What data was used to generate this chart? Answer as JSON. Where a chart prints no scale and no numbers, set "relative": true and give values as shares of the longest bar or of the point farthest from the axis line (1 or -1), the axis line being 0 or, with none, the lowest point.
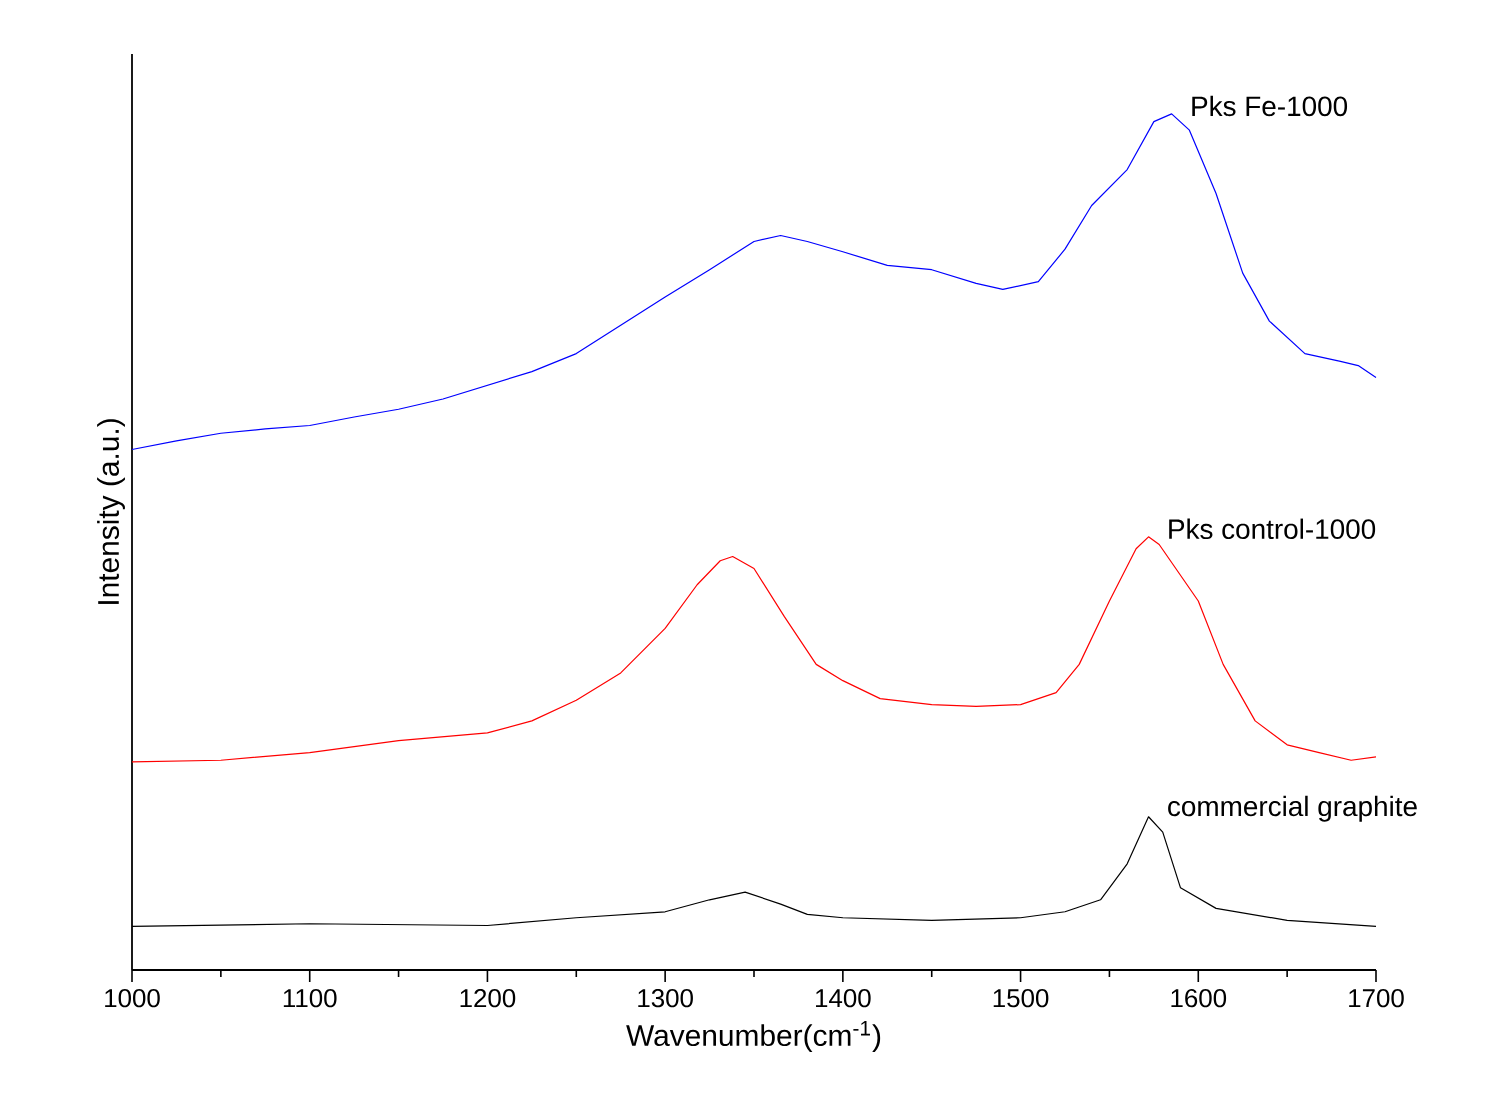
{
  "chart_data": {
    "type": "line",
    "xlabel": "Wavenumber(cm$^{-1}$)",
    "ylabel": "Intensity (a.u.)",
    "relative": true,
    "xlim": [
      1000,
      1700
    ],
    "xticks": [
      1000,
      1100,
      1200,
      1300,
      1400,
      1500,
      1600,
      1700
    ],
    "series": [
      {
        "name": "Pks Fe-1000",
        "color": "#0000ff",
        "x": [
          1000,
          1025,
          1050,
          1075,
          1100,
          1125,
          1150,
          1175,
          1200,
          1225,
          1250,
          1275,
          1300,
          1325,
          1350,
          1365,
          1380,
          1400,
          1425,
          1450,
          1475,
          1490,
          1510,
          1525,
          1540,
          1560,
          1575,
          1585,
          1595,
          1610,
          1625,
          1640,
          1660,
          1680,
          1690,
          1700
        ],
        "values": [
          0.608,
          0.618,
          0.627,
          0.632,
          0.636,
          0.646,
          0.655,
          0.667,
          0.683,
          0.699,
          0.72,
          0.753,
          0.786,
          0.818,
          0.851,
          0.858,
          0.851,
          0.839,
          0.823,
          0.818,
          0.802,
          0.795,
          0.804,
          0.842,
          0.893,
          0.935,
          0.991,
          1.0,
          0.981,
          0.907,
          0.814,
          0.758,
          0.72,
          0.711,
          0.706,
          0.692
        ]
      },
      {
        "name": "Pks control-1000",
        "color": "#ff0000",
        "x": [
          1000,
          1050,
          1100,
          1150,
          1200,
          1225,
          1250,
          1275,
          1300,
          1318,
          1331,
          1338,
          1350,
          1367,
          1385,
          1400,
          1421,
          1450,
          1475,
          1500,
          1520,
          1533,
          1550,
          1565,
          1572,
          1578,
          1600,
          1614,
          1632,
          1650,
          1668,
          1686,
          1700
        ],
        "values": [
          0.243,
          0.245,
          0.254,
          0.268,
          0.277,
          0.291,
          0.315,
          0.347,
          0.399,
          0.45,
          0.478,
          0.483,
          0.469,
          0.413,
          0.357,
          0.338,
          0.317,
          0.31,
          0.308,
          0.31,
          0.324,
          0.357,
          0.431,
          0.492,
          0.506,
          0.497,
          0.431,
          0.357,
          0.291,
          0.263,
          0.254,
          0.245,
          0.249
        ]
      },
      {
        "name": "commercial graphite",
        "color": "#000000",
        "x": [
          1000,
          1100,
          1200,
          1250,
          1300,
          1325,
          1345,
          1365,
          1380,
          1400,
          1450,
          1500,
          1525,
          1545,
          1560,
          1572,
          1580,
          1590,
          1610,
          1650,
          1700
        ],
        "values": [
          0.051,
          0.054,
          0.052,
          0.061,
          0.068,
          0.082,
          0.091,
          0.077,
          0.065,
          0.061,
          0.058,
          0.061,
          0.068,
          0.082,
          0.124,
          0.179,
          0.161,
          0.096,
          0.072,
          0.058,
          0.051
        ]
      }
    ]
  }
}
